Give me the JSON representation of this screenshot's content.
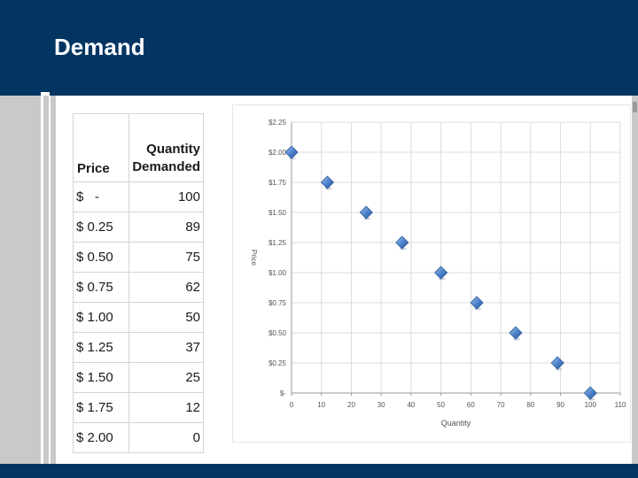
{
  "slide": {
    "title": "Demand"
  },
  "table": {
    "headers": {
      "price": "Price",
      "quantity": "Quantity Demanded"
    },
    "rows": [
      {
        "price": "$   -",
        "quantity": "100"
      },
      {
        "price": "$ 0.25",
        "quantity": "89"
      },
      {
        "price": "$ 0.50",
        "quantity": "75"
      },
      {
        "price": "$ 0.75",
        "quantity": "62"
      },
      {
        "price": "$ 1.00",
        "quantity": "50"
      },
      {
        "price": "$ 1.25",
        "quantity": "37"
      },
      {
        "price": "$ 1.50",
        "quantity": "25"
      },
      {
        "price": "$ 1.75",
        "quantity": "12"
      },
      {
        "price": "$ 2.00",
        "quantity": "0"
      }
    ]
  },
  "chart_data": {
    "type": "scatter",
    "title": "",
    "xlabel": "Quantity",
    "ylabel": "Price",
    "xlim": [
      0,
      110
    ],
    "ylim": [
      0,
      2.25
    ],
    "x_ticks": [
      0,
      10,
      20,
      30,
      40,
      50,
      60,
      70,
      80,
      90,
      100,
      110
    ],
    "y_ticks": [
      {
        "value": 0,
        "label": "$-"
      },
      {
        "value": 0.25,
        "label": "$0.25"
      },
      {
        "value": 0.5,
        "label": "$0.50"
      },
      {
        "value": 0.75,
        "label": "$0.75"
      },
      {
        "value": 1.0,
        "label": "$1.00"
      },
      {
        "value": 1.25,
        "label": "$1.25"
      },
      {
        "value": 1.5,
        "label": "$1.50"
      },
      {
        "value": 1.75,
        "label": "$1.75"
      },
      {
        "value": 2.0,
        "label": "$2.00"
      },
      {
        "value": 2.25,
        "label": "$2.25"
      }
    ],
    "grid": true,
    "marker_color": "#4a7fc8",
    "series": [
      {
        "points": [
          {
            "x": 0,
            "y": 2.0
          },
          {
            "x": 12,
            "y": 1.75
          },
          {
            "x": 25,
            "y": 1.5
          },
          {
            "x": 37,
            "y": 1.25
          },
          {
            "x": 50,
            "y": 1.0
          },
          {
            "x": 62,
            "y": 0.75
          },
          {
            "x": 75,
            "y": 0.5
          },
          {
            "x": 89,
            "y": 0.25
          },
          {
            "x": 100,
            "y": 0
          }
        ]
      }
    ]
  },
  "colors": {
    "header": "#033563",
    "side_bars": "#c9c9c9"
  }
}
